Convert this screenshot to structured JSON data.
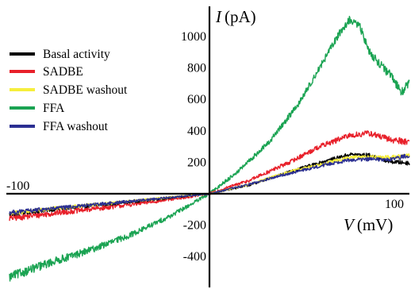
{
  "chart_data": {
    "type": "line",
    "xlabel": {
      "symbol": "V",
      "unit": "(mV)"
    },
    "ylabel": {
      "symbol": "I",
      "unit": "(pA)"
    },
    "xlim": [
      -100,
      100
    ],
    "ylim": [
      -520,
      1180
    ],
    "x_tick_labels": [
      {
        "value": -100,
        "text": "-100"
      },
      {
        "value": 100,
        "text": "100"
      }
    ],
    "y_tick_labels": [
      {
        "value": 1000,
        "text": "1000"
      },
      {
        "value": 800,
        "text": "800"
      },
      {
        "value": 600,
        "text": "600"
      },
      {
        "value": 400,
        "text": "400"
      },
      {
        "value": 200,
        "text": "200"
      },
      {
        "value": -200,
        "text": "-200"
      },
      {
        "value": -400,
        "text": "-400"
      }
    ],
    "grid": false,
    "legend_position": "upper-left",
    "series": [
      {
        "name": "Basal activity",
        "color": "#000000",
        "noise": 14,
        "points": [
          [
            -100,
            -130
          ],
          [
            -75,
            -95
          ],
          [
            -50,
            -65
          ],
          [
            -25,
            -33
          ],
          [
            0,
            0
          ],
          [
            20,
            55
          ],
          [
            40,
            140
          ],
          [
            60,
            215
          ],
          [
            70,
            250
          ],
          [
            80,
            245
          ],
          [
            90,
            205
          ],
          [
            100,
            195
          ]
        ]
      },
      {
        "name": "SADBE",
        "color": "#e8202a",
        "noise": 22,
        "points": [
          [
            -100,
            -155
          ],
          [
            -75,
            -120
          ],
          [
            -50,
            -85
          ],
          [
            -25,
            -45
          ],
          [
            0,
            0
          ],
          [
            20,
            85
          ],
          [
            40,
            200
          ],
          [
            55,
            300
          ],
          [
            70,
            370
          ],
          [
            80,
            385
          ],
          [
            90,
            345
          ],
          [
            100,
            330
          ]
        ]
      },
      {
        "name": "SADBE washout",
        "color": "#f6ee3c",
        "noise": 14,
        "points": [
          [
            -100,
            -125
          ],
          [
            -75,
            -90
          ],
          [
            -50,
            -60
          ],
          [
            -25,
            -30
          ],
          [
            0,
            0
          ],
          [
            20,
            60
          ],
          [
            40,
            140
          ],
          [
            60,
            200
          ],
          [
            70,
            230
          ],
          [
            80,
            235
          ],
          [
            90,
            230
          ],
          [
            100,
            245
          ]
        ]
      },
      {
        "name": "FFA",
        "color": "#1aa352",
        "noise": 30,
        "points": [
          [
            -100,
            -530
          ],
          [
            -80,
            -440
          ],
          [
            -60,
            -360
          ],
          [
            -40,
            -265
          ],
          [
            -20,
            -145
          ],
          [
            0,
            0
          ],
          [
            15,
            150
          ],
          [
            30,
            330
          ],
          [
            45,
            580
          ],
          [
            55,
            800
          ],
          [
            65,
            1020
          ],
          [
            70,
            1105
          ],
          [
            75,
            1070
          ],
          [
            80,
            900
          ],
          [
            90,
            760
          ],
          [
            96,
            650
          ],
          [
            100,
            700
          ]
        ]
      },
      {
        "name": "FFA washout",
        "color": "#2b2f92",
        "noise": 14,
        "points": [
          [
            -100,
            -120
          ],
          [
            -75,
            -90
          ],
          [
            -50,
            -60
          ],
          [
            -25,
            -30
          ],
          [
            0,
            0
          ],
          [
            20,
            60
          ],
          [
            40,
            130
          ],
          [
            60,
            190
          ],
          [
            70,
            215
          ],
          [
            80,
            220
          ],
          [
            90,
            215
          ],
          [
            100,
            245
          ]
        ]
      }
    ]
  }
}
